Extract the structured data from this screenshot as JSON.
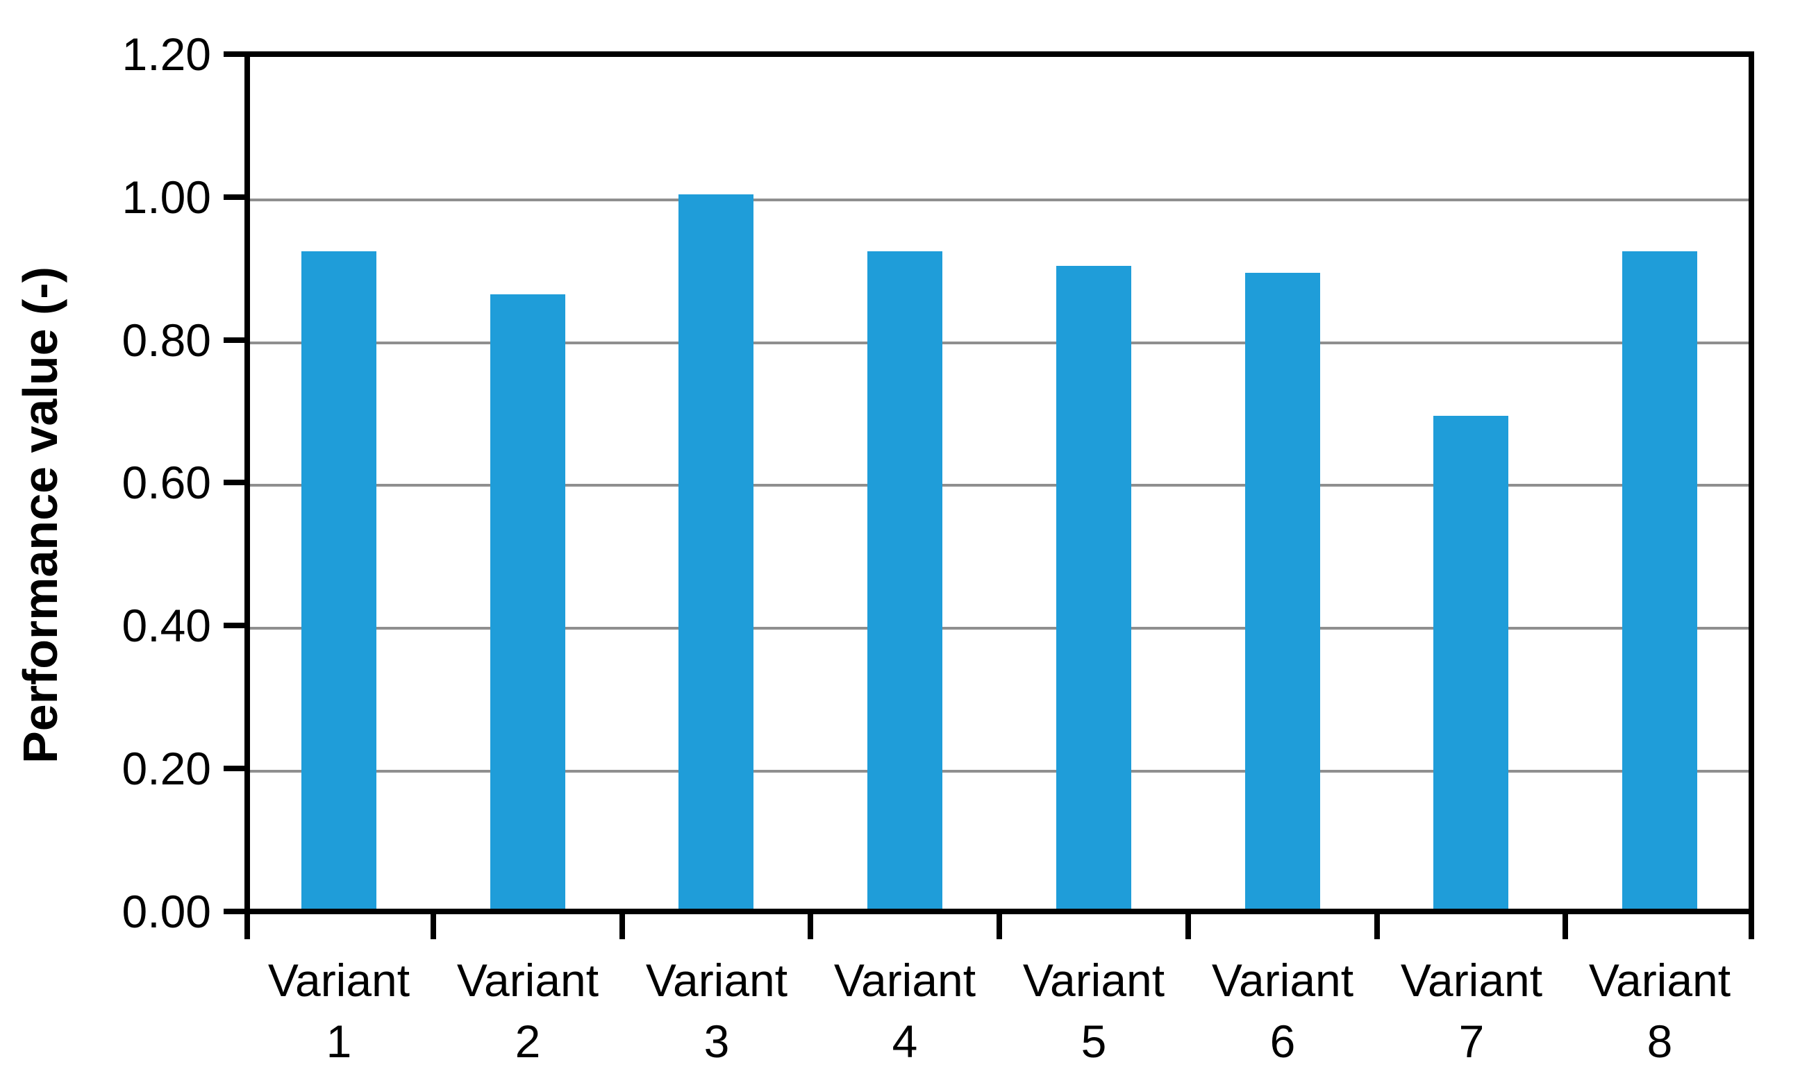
{
  "chart_data": {
    "type": "bar",
    "categories": [
      "Variant 1",
      "Variant 2",
      "Variant 3",
      "Variant 4",
      "Variant 5",
      "Variant 6",
      "Variant 7",
      "Variant 8"
    ],
    "values": [
      0.92,
      0.86,
      1.0,
      0.92,
      0.9,
      0.89,
      0.69,
      0.92
    ],
    "title": "",
    "xlabel": "",
    "ylabel": "Performance value (-)",
    "ylim": [
      0.0,
      1.2
    ],
    "ytick_step": 0.2,
    "ytick_labels": [
      "0.00",
      "0.20",
      "0.40",
      "0.60",
      "0.80",
      "1.00",
      "1.20"
    ],
    "grid": true,
    "legend": "none",
    "colors": {
      "bar_fill": "#1f9dd9",
      "gridline": "#8f8f8f",
      "axis": "#000000",
      "text": "#000000",
      "background": "#ffffff"
    }
  }
}
